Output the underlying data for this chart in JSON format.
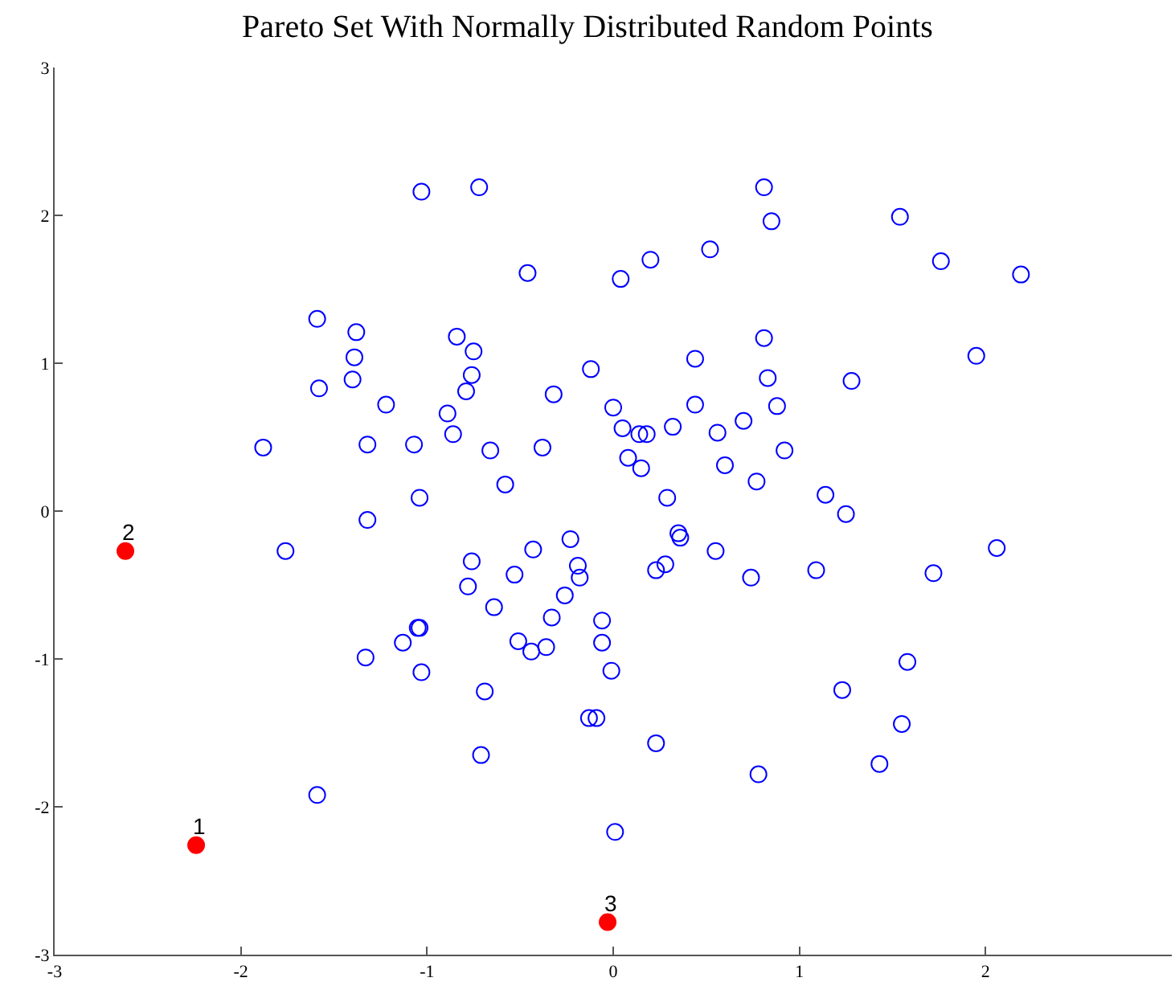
{
  "chart_data": {
    "type": "scatter",
    "title": "Pareto Set With Normally Distributed Random Points",
    "xlim": [
      -3,
      3
    ],
    "xticks": [
      -3,
      -2,
      -1,
      0,
      1,
      2
    ],
    "ylim": [
      -3,
      3
    ],
    "yticks": [
      -3,
      -2,
      -1,
      0,
      1,
      2,
      3
    ],
    "series": [
      {
        "color": "#0000ff",
        "marker": "circle-open",
        "x": [
          -1.03,
          -0.72,
          0.81,
          1.54,
          0.85,
          0.52,
          0.2,
          1.76,
          2.19,
          -0.46,
          0.04,
          -1.59,
          -1.38,
          -0.84,
          -0.75,
          0.81,
          -1.39,
          -1.4,
          -0.76,
          -1.58,
          -1.22,
          -0.79,
          -0.32,
          -0.89,
          -0.86,
          -1.88,
          -1.32,
          -1.07,
          -0.66,
          -0.38,
          -0.58,
          -1.04,
          -1.32,
          -0.12,
          0.0,
          0.05,
          0.44,
          1.95,
          0.83,
          1.28,
          0.44,
          0.88,
          0.7,
          0.14,
          0.18,
          0.32,
          0.56,
          0.92,
          0.08,
          0.15,
          0.6,
          0.77,
          0.29,
          1.14,
          1.25,
          0.35,
          0.36,
          0.55,
          2.06,
          0.28,
          0.23,
          0.74,
          1.09,
          1.72,
          -0.06,
          -0.06,
          -0.01,
          1.58,
          1.23,
          -0.09,
          1.55,
          0.23,
          1.43,
          0.78,
          0.01,
          -1.76,
          -0.23,
          -0.43,
          -0.76,
          -0.19,
          -0.53,
          -0.18,
          -0.78,
          -0.26,
          -0.64,
          -0.33,
          -1.05,
          -1.04,
          -1.13,
          -0.51,
          -0.44,
          -0.36,
          -1.33,
          -1.03,
          -0.69,
          -0.13,
          -0.71,
          -1.59
        ],
        "values": [
          2.16,
          2.19,
          2.19,
          1.99,
          1.96,
          1.77,
          1.7,
          1.69,
          1.6,
          1.61,
          1.57,
          1.3,
          1.21,
          1.18,
          1.08,
          1.17,
          1.04,
          0.89,
          0.92,
          0.83,
          0.72,
          0.81,
          0.79,
          0.66,
          0.52,
          0.43,
          0.45,
          0.45,
          0.41,
          0.43,
          0.18,
          0.09,
          -0.06,
          0.96,
          0.7,
          0.56,
          1.03,
          1.05,
          0.9,
          0.88,
          0.72,
          0.71,
          0.61,
          0.52,
          0.52,
          0.57,
          0.53,
          0.41,
          0.36,
          0.29,
          0.31,
          0.2,
          0.09,
          0.11,
          -0.02,
          -0.15,
          -0.18,
          -0.27,
          -0.25,
          -0.36,
          -0.4,
          -0.45,
          -0.4,
          -0.42,
          -0.74,
          -0.89,
          -1.08,
          -1.02,
          -1.21,
          -1.4,
          -1.44,
          -1.57,
          -1.71,
          -1.78,
          -2.17,
          -0.27,
          -0.19,
          -0.26,
          -0.34,
          -0.37,
          -0.43,
          -0.45,
          -0.51,
          -0.57,
          -0.65,
          -0.72,
          -0.79,
          -0.79,
          -0.89,
          -0.88,
          -0.95,
          -0.92,
          -0.99,
          -1.09,
          -1.22,
          -1.4,
          -1.65,
          -1.92
        ]
      },
      {
        "color": "#ff0000",
        "marker": "circle",
        "x": [
          -2.24,
          -2.62,
          -0.03
        ],
        "values": [
          -2.26,
          -0.27,
          -2.78
        ]
      }
    ],
    "annotations": [
      {
        "text": "1",
        "x": -2.24,
        "y": -2.26
      },
      {
        "text": "2",
        "x": -2.62,
        "y": -0.27
      },
      {
        "text": "3",
        "x": -0.03,
        "y": -2.78
      }
    ]
  }
}
